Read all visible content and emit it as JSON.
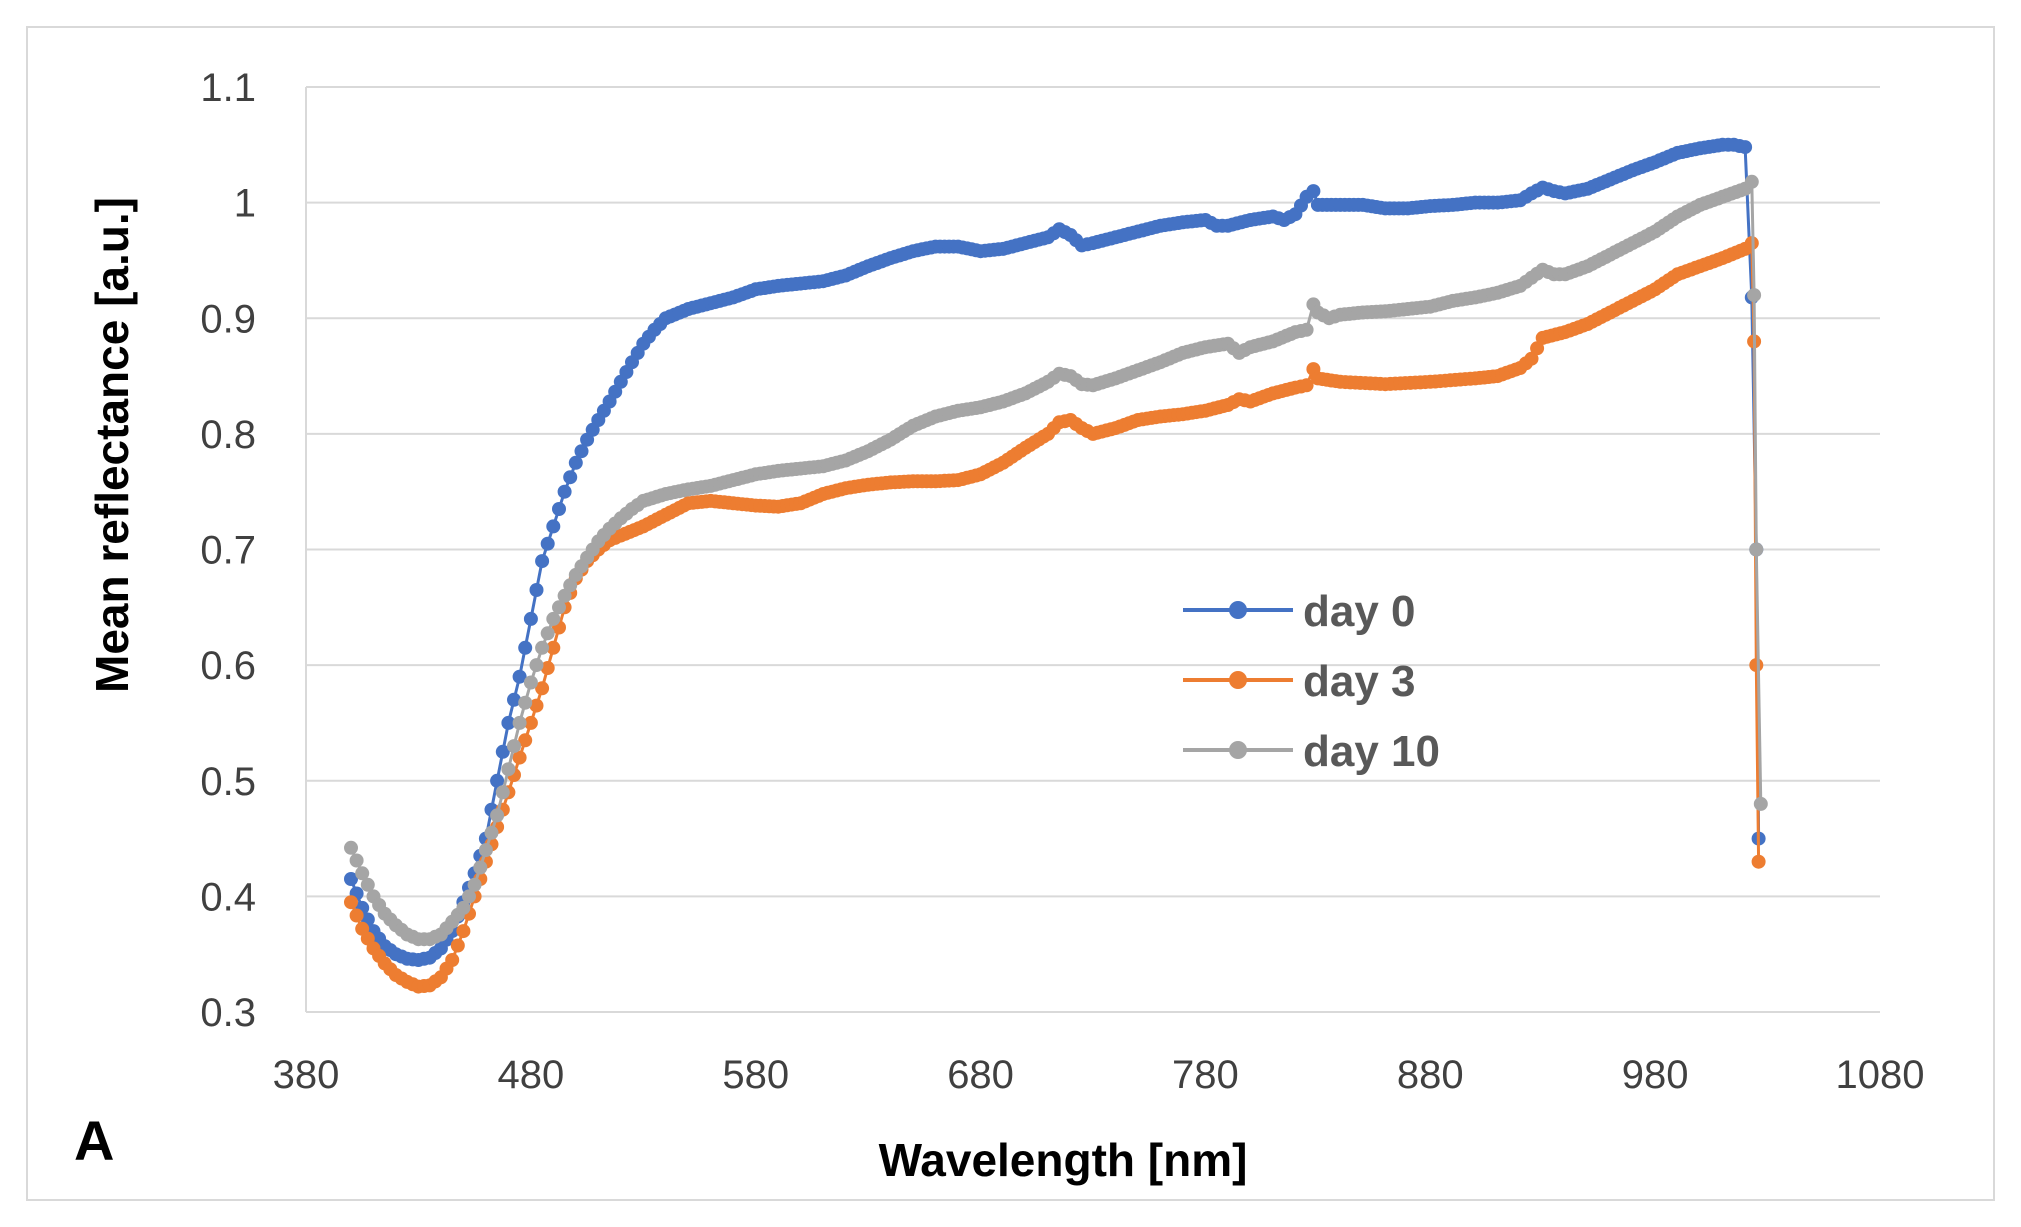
{
  "chart_data": {
    "type": "line",
    "panel_label": "A",
    "title": "",
    "xlabel": "Wavelength [nm]",
    "ylabel": "Mean reflectance [a.u.]",
    "xlim": [
      380,
      1080
    ],
    "ylim": [
      0.3,
      1.1
    ],
    "xticks": [
      380,
      480,
      580,
      680,
      780,
      880,
      980,
      1080
    ],
    "yticks": [
      "0.3",
      "0.4",
      "0.5",
      "0.6",
      "0.7",
      "0.8",
      "0.9",
      "1",
      "1.1"
    ],
    "grid": "horizontal",
    "legend_position": "center-right",
    "series": [
      {
        "name": "day 0",
        "color": "#4472C4",
        "points": [
          [
            400,
            0.415
          ],
          [
            405,
            0.39
          ],
          [
            410,
            0.37
          ],
          [
            415,
            0.357
          ],
          [
            420,
            0.35
          ],
          [
            425,
            0.346
          ],
          [
            430,
            0.345
          ],
          [
            435,
            0.347
          ],
          [
            440,
            0.355
          ],
          [
            445,
            0.37
          ],
          [
            450,
            0.395
          ],
          [
            455,
            0.42
          ],
          [
            460,
            0.45
          ],
          [
            465,
            0.5
          ],
          [
            470,
            0.55
          ],
          [
            475,
            0.59
          ],
          [
            480,
            0.64
          ],
          [
            485,
            0.69
          ],
          [
            490,
            0.72
          ],
          [
            495,
            0.75
          ],
          [
            500,
            0.775
          ],
          [
            505,
            0.795
          ],
          [
            510,
            0.812
          ],
          [
            515,
            0.828
          ],
          [
            520,
            0.845
          ],
          [
            525,
            0.862
          ],
          [
            530,
            0.878
          ],
          [
            535,
            0.89
          ],
          [
            540,
            0.9
          ],
          [
            550,
            0.908
          ],
          [
            560,
            0.913
          ],
          [
            570,
            0.918
          ],
          [
            580,
            0.925
          ],
          [
            590,
            0.928
          ],
          [
            600,
            0.93
          ],
          [
            610,
            0.932
          ],
          [
            620,
            0.937
          ],
          [
            630,
            0.945
          ],
          [
            640,
            0.952
          ],
          [
            650,
            0.958
          ],
          [
            660,
            0.962
          ],
          [
            670,
            0.962
          ],
          [
            680,
            0.958
          ],
          [
            690,
            0.96
          ],
          [
            700,
            0.965
          ],
          [
            710,
            0.97
          ],
          [
            715,
            0.977
          ],
          [
            720,
            0.972
          ],
          [
            725,
            0.963
          ],
          [
            730,
            0.965
          ],
          [
            740,
            0.97
          ],
          [
            750,
            0.975
          ],
          [
            760,
            0.98
          ],
          [
            770,
            0.983
          ],
          [
            780,
            0.985
          ],
          [
            785,
            0.98
          ],
          [
            790,
            0.98
          ],
          [
            800,
            0.985
          ],
          [
            810,
            0.988
          ],
          [
            815,
            0.985
          ],
          [
            820,
            0.99
          ],
          [
            825,
            1.005
          ],
          [
            828,
            1.01
          ],
          [
            830,
            0.998
          ],
          [
            840,
            0.998
          ],
          [
            850,
            0.998
          ],
          [
            860,
            0.995
          ],
          [
            870,
            0.995
          ],
          [
            880,
            0.997
          ],
          [
            890,
            0.998
          ],
          [
            900,
            1.0
          ],
          [
            910,
            1.0
          ],
          [
            920,
            1.002
          ],
          [
            925,
            1.008
          ],
          [
            930,
            1.013
          ],
          [
            935,
            1.01
          ],
          [
            940,
            1.008
          ],
          [
            950,
            1.012
          ],
          [
            960,
            1.02
          ],
          [
            970,
            1.028
          ],
          [
            980,
            1.035
          ],
          [
            990,
            1.043
          ],
          [
            1000,
            1.047
          ],
          [
            1010,
            1.05
          ],
          [
            1015,
            1.05
          ],
          [
            1020,
            1.048
          ],
          [
            1023,
            0.918
          ],
          [
            1025,
            0.7
          ],
          [
            1026,
            0.45
          ]
        ]
      },
      {
        "name": "day 3",
        "color": "#ED7D31",
        "points": [
          [
            400,
            0.395
          ],
          [
            405,
            0.372
          ],
          [
            410,
            0.355
          ],
          [
            415,
            0.342
          ],
          [
            420,
            0.332
          ],
          [
            425,
            0.326
          ],
          [
            430,
            0.322
          ],
          [
            435,
            0.323
          ],
          [
            440,
            0.33
          ],
          [
            445,
            0.345
          ],
          [
            450,
            0.37
          ],
          [
            455,
            0.4
          ],
          [
            460,
            0.43
          ],
          [
            465,
            0.46
          ],
          [
            470,
            0.49
          ],
          [
            475,
            0.52
          ],
          [
            480,
            0.55
          ],
          [
            485,
            0.58
          ],
          [
            490,
            0.615
          ],
          [
            495,
            0.65
          ],
          [
            500,
            0.675
          ],
          [
            505,
            0.69
          ],
          [
            510,
            0.7
          ],
          [
            515,
            0.708
          ],
          [
            520,
            0.712
          ],
          [
            530,
            0.72
          ],
          [
            540,
            0.73
          ],
          [
            550,
            0.74
          ],
          [
            560,
            0.742
          ],
          [
            570,
            0.74
          ],
          [
            580,
            0.738
          ],
          [
            590,
            0.737
          ],
          [
            600,
            0.74
          ],
          [
            610,
            0.748
          ],
          [
            620,
            0.753
          ],
          [
            630,
            0.756
          ],
          [
            640,
            0.758
          ],
          [
            650,
            0.759
          ],
          [
            660,
            0.759
          ],
          [
            670,
            0.76
          ],
          [
            680,
            0.765
          ],
          [
            690,
            0.775
          ],
          [
            700,
            0.788
          ],
          [
            710,
            0.8
          ],
          [
            715,
            0.81
          ],
          [
            720,
            0.812
          ],
          [
            725,
            0.805
          ],
          [
            730,
            0.8
          ],
          [
            740,
            0.805
          ],
          [
            750,
            0.812
          ],
          [
            760,
            0.815
          ],
          [
            770,
            0.817
          ],
          [
            780,
            0.82
          ],
          [
            790,
            0.825
          ],
          [
            795,
            0.83
          ],
          [
            800,
            0.828
          ],
          [
            810,
            0.835
          ],
          [
            820,
            0.84
          ],
          [
            825,
            0.842
          ],
          [
            828,
            0.856
          ],
          [
            830,
            0.848
          ],
          [
            840,
            0.845
          ],
          [
            860,
            0.843
          ],
          [
            880,
            0.845
          ],
          [
            900,
            0.848
          ],
          [
            910,
            0.85
          ],
          [
            920,
            0.857
          ],
          [
            925,
            0.865
          ],
          [
            930,
            0.883
          ],
          [
            940,
            0.888
          ],
          [
            950,
            0.895
          ],
          [
            960,
            0.905
          ],
          [
            970,
            0.915
          ],
          [
            980,
            0.925
          ],
          [
            990,
            0.938
          ],
          [
            1000,
            0.945
          ],
          [
            1010,
            0.952
          ],
          [
            1020,
            0.96
          ],
          [
            1023,
            0.965
          ],
          [
            1024,
            0.88
          ],
          [
            1025,
            0.6
          ],
          [
            1026,
            0.43
          ]
        ]
      },
      {
        "name": "day 10",
        "color": "#A5A5A5",
        "points": [
          [
            400,
            0.442
          ],
          [
            405,
            0.42
          ],
          [
            410,
            0.4
          ],
          [
            415,
            0.385
          ],
          [
            420,
            0.375
          ],
          [
            425,
            0.367
          ],
          [
            430,
            0.363
          ],
          [
            435,
            0.363
          ],
          [
            440,
            0.367
          ],
          [
            445,
            0.378
          ],
          [
            450,
            0.39
          ],
          [
            455,
            0.41
          ],
          [
            460,
            0.44
          ],
          [
            465,
            0.47
          ],
          [
            470,
            0.51
          ],
          [
            475,
            0.55
          ],
          [
            480,
            0.585
          ],
          [
            485,
            0.615
          ],
          [
            490,
            0.64
          ],
          [
            495,
            0.66
          ],
          [
            500,
            0.678
          ],
          [
            505,
            0.693
          ],
          [
            510,
            0.707
          ],
          [
            515,
            0.718
          ],
          [
            520,
            0.727
          ],
          [
            525,
            0.735
          ],
          [
            530,
            0.742
          ],
          [
            540,
            0.748
          ],
          [
            550,
            0.752
          ],
          [
            560,
            0.755
          ],
          [
            570,
            0.76
          ],
          [
            580,
            0.765
          ],
          [
            590,
            0.768
          ],
          [
            600,
            0.77
          ],
          [
            610,
            0.772
          ],
          [
            620,
            0.777
          ],
          [
            630,
            0.785
          ],
          [
            640,
            0.795
          ],
          [
            650,
            0.807
          ],
          [
            660,
            0.815
          ],
          [
            670,
            0.82
          ],
          [
            680,
            0.823
          ],
          [
            690,
            0.828
          ],
          [
            700,
            0.835
          ],
          [
            710,
            0.845
          ],
          [
            715,
            0.852
          ],
          [
            720,
            0.85
          ],
          [
            725,
            0.843
          ],
          [
            730,
            0.842
          ],
          [
            740,
            0.848
          ],
          [
            750,
            0.855
          ],
          [
            760,
            0.862
          ],
          [
            770,
            0.87
          ],
          [
            780,
            0.875
          ],
          [
            790,
            0.878
          ],
          [
            795,
            0.87
          ],
          [
            800,
            0.875
          ],
          [
            810,
            0.88
          ],
          [
            820,
            0.888
          ],
          [
            825,
            0.89
          ],
          [
            828,
            0.912
          ],
          [
            830,
            0.905
          ],
          [
            835,
            0.9
          ],
          [
            840,
            0.903
          ],
          [
            850,
            0.905
          ],
          [
            860,
            0.906
          ],
          [
            870,
            0.908
          ],
          [
            880,
            0.91
          ],
          [
            890,
            0.915
          ],
          [
            900,
            0.918
          ],
          [
            910,
            0.922
          ],
          [
            920,
            0.928
          ],
          [
            925,
            0.935
          ],
          [
            930,
            0.942
          ],
          [
            935,
            0.938
          ],
          [
            940,
            0.938
          ],
          [
            950,
            0.945
          ],
          [
            960,
            0.955
          ],
          [
            970,
            0.965
          ],
          [
            980,
            0.975
          ],
          [
            990,
            0.988
          ],
          [
            1000,
            0.998
          ],
          [
            1010,
            1.005
          ],
          [
            1020,
            1.012
          ],
          [
            1023,
            1.018
          ],
          [
            1024,
            0.92
          ],
          [
            1025,
            0.7
          ],
          [
            1027,
            0.48
          ]
        ]
      }
    ]
  }
}
